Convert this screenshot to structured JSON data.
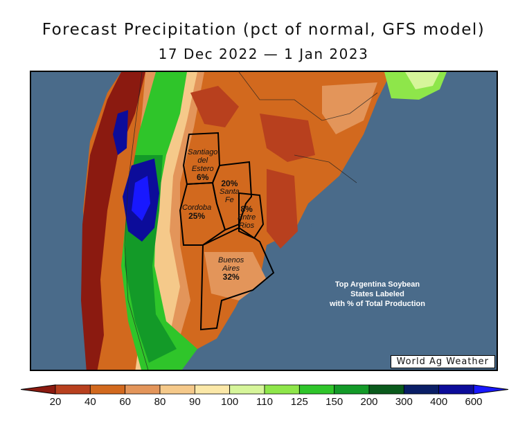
{
  "title": "Forecast Precipitation (pct of normal, GFS model)",
  "subtitle": "17 Dec 2022 — 1 Jan 2023",
  "credit": "World Ag Weather",
  "note": [
    "Top Argentina Soybean",
    "States Labeled",
    "with % of Total Production"
  ],
  "regions": [
    {
      "name": "Santiago del Estero",
      "lines": [
        "Santiago",
        "del",
        "Estero"
      ],
      "pct": "6%"
    },
    {
      "name": "Santa Fe",
      "lines": [
        "Santa",
        "Fe"
      ],
      "pct": "20%"
    },
    {
      "name": "Cordoba",
      "lines": [
        "Cordoba"
      ],
      "pct": "25%"
    },
    {
      "name": "Entre Rios",
      "lines": [
        "Entre",
        "Rios"
      ],
      "pct": "8%"
    },
    {
      "name": "Buenos Aires",
      "lines": [
        "Buenos",
        "Aires"
      ],
      "pct": "32%"
    }
  ],
  "legend": {
    "ticks": [
      "20",
      "40",
      "60",
      "80",
      "90",
      "100",
      "110",
      "125",
      "150",
      "200",
      "300",
      "400",
      "600"
    ],
    "colors": [
      "#8b1a10",
      "#b8401e",
      "#d2691e",
      "#e3955a",
      "#f5c98a",
      "#fbe8a8",
      "#d6f59a",
      "#8ee64a",
      "#2fc52a",
      "#139a28",
      "#0a5a1c",
      "#0a1e66",
      "#0c0c9a",
      "#1818ff"
    ]
  },
  "colors": {
    "ocean": "#4a6b8a",
    "outline": "#000000"
  }
}
